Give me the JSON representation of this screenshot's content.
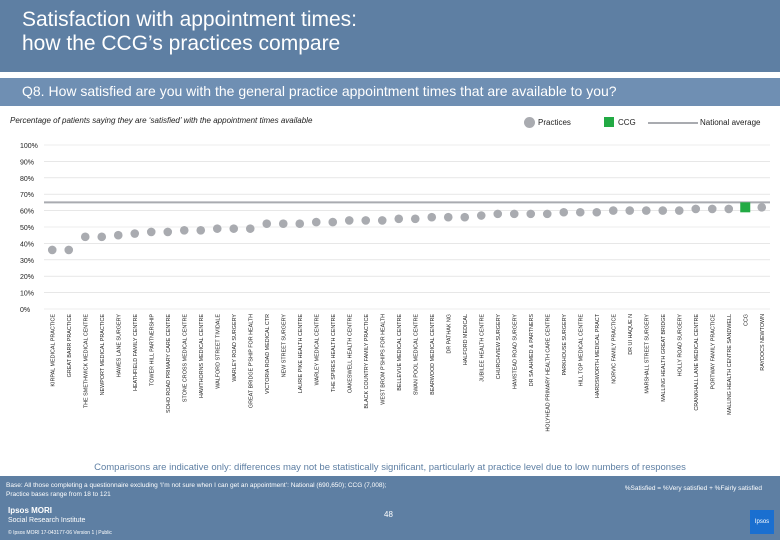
{
  "header": {
    "title_line1": "Satisfaction with appointment times:",
    "title_line2": "how the CCG’s practices compare"
  },
  "question": "Q8. How satisfied are you with the general practice appointment times that are available to you?",
  "subtitle": "Percentage of patients saying they are ‘satisfied’ with the appointment times available",
  "legend": {
    "practices": "Practices",
    "ccg": "CCG",
    "national": "National average"
  },
  "colors": {
    "practice_marker": "#a9abb0",
    "ccg_marker": "#22aa44",
    "national_line": "#a9abb0",
    "header": "#5e7fa3"
  },
  "chart_data": {
    "type": "scatter",
    "y_ticks": [
      "0%",
      "10%",
      "20%",
      "30%",
      "40%",
      "50%",
      "60%",
      "70%",
      "80%",
      "90%",
      "100%"
    ],
    "ylim": [
      0,
      100
    ],
    "national_average": 65,
    "categories": [
      "KIRPAL MEDICAL PRACTICE",
      "GREAT BARR PRACTICE",
      "THE SMETHWICK MEDICAL CENTRE",
      "NEWPORT MEDICAL PRACTICE",
      "HAWES LANE SURGERY",
      "HEATHFIELD FAMILY CENTRE",
      "TOWER HILL PARTNERSHIP",
      "SOHO ROAD PRIMARY CARE CENTRE",
      "STONE CROSS MEDICAL CENTRE",
      "HAWTHORNS MEDICAL CENTRE",
      "WALFORD STREET TIVIDALE",
      "WARLEY ROAD SURGERY",
      "GREAT BRIDGE P'SHIP FOR HEALTH",
      "VICTORIA ROAD MEDICAL CTR",
      "NEW STREET SURGERY",
      "LAURIE PIKE HEALTH CENTRE",
      "WARLEY MEDICAL CENTRE",
      "THE SPIRES HEALTH CENTRE",
      "OAKESWELL HEALTH CENTRE",
      "BLACK COUNTRY FAMILY PRACTICE",
      "WEST BROM P'SHIPS FOR HEALTH",
      "BELLEVUE MEDICAL CENTRE",
      "SWAN POOL MEDICAL CENTRE",
      "BEARWOOD MEDICAL CENTRE",
      "DR PATHAK NG",
      "HALFORD MEDICAL",
      "JUBILEE HEALTH CENTRE",
      "CHURCHVIEW SURGERY",
      "HAMSTEAD ROAD SURGERY",
      "DR SA AHMED & PARTNERS",
      "HOLYHEAD PRIMARY HEALTH CARE CENTRE",
      "PARKHOUSE SURGERY",
      "HILL TOP MEDICAL CENTRE",
      "HARDSWORTH MEDICAL PRACT",
      "NORVIC FAMILY PRACTICE",
      "DR UI HAQUE N",
      "MARSHALL STREET SURGERY",
      "MALLING HEALTH GREAT BRIDGE",
      "HOLLY ROAD SURGERY",
      "CRANKHALL LANE MEDICAL CENTRE",
      "PORTWAY FAMILY PRACTICE",
      "MALLING HEALTH CENTRE SANDWELL",
      "CCG",
      "RAYDOCS NEWTOWN"
    ],
    "values": [
      36,
      36,
      44,
      44,
      45,
      46,
      47,
      47,
      48,
      48,
      49,
      49,
      49,
      52,
      52,
      52,
      53,
      53,
      54,
      54,
      54,
      55,
      55,
      56,
      56,
      56,
      57,
      58,
      58,
      58,
      58,
      59,
      59,
      59,
      60,
      60,
      60,
      60,
      60,
      61,
      61,
      61,
      62,
      62
    ],
    "ccg_index": 42
  },
  "note": "Comparisons are indicative only: differences may not be statistically significant, particularly at practice level due to low numbers of responses",
  "footer": {
    "base_line1": "Base: All those completing a questionnaire excluding ‘I’m not sure when I can get an appointment’: National (690,650); CCG (7,008);",
    "base_line2": "Practice bases range from 18 to 121",
    "satisfied_def": "%Satisfied = %Very satisfied + %Fairly satisfied",
    "page": "48",
    "brand1": "Ipsos MORI",
    "brand2": "Social Research Institute",
    "copyright": "© Ipsos MORI     17-043177-06 Version 1 | Public",
    "logo": "Ipsos"
  }
}
